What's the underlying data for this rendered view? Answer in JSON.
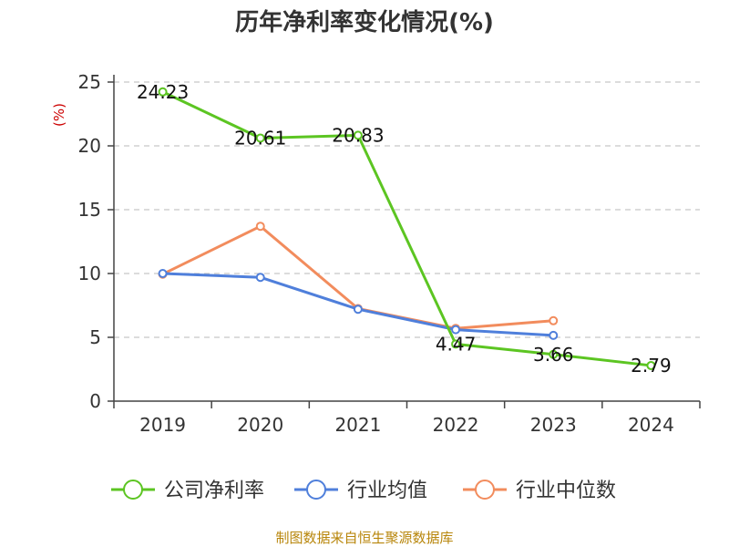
{
  "chart_data": {
    "type": "line",
    "title": "历年净利率变化情况(%)",
    "ylabel": "(%)",
    "ylim": [
      0,
      25
    ],
    "yticks": [
      0,
      5,
      10,
      15,
      20,
      25
    ],
    "categories": [
      "2019",
      "2020",
      "2021",
      "2022",
      "2023",
      "2024"
    ],
    "grid": true,
    "legend_position": "bottom",
    "series": [
      {
        "name": "公司净利率",
        "color": "#5cc522",
        "values": [
          24.23,
          20.61,
          20.83,
          4.47,
          3.66,
          2.79
        ],
        "labels": [
          "24.23",
          "20.61",
          "20.83",
          "4.47",
          "3.66",
          "2.79"
        ]
      },
      {
        "name": "行业均值",
        "color": "#4f7fdb",
        "values": [
          10.0,
          9.7,
          7.2,
          5.6,
          5.15,
          null
        ]
      },
      {
        "name": "行业中位数",
        "color": "#f28c5d",
        "values": [
          9.95,
          13.7,
          7.25,
          5.7,
          6.3,
          null
        ]
      }
    ],
    "source": "制图数据来自恒生聚源数据库"
  }
}
